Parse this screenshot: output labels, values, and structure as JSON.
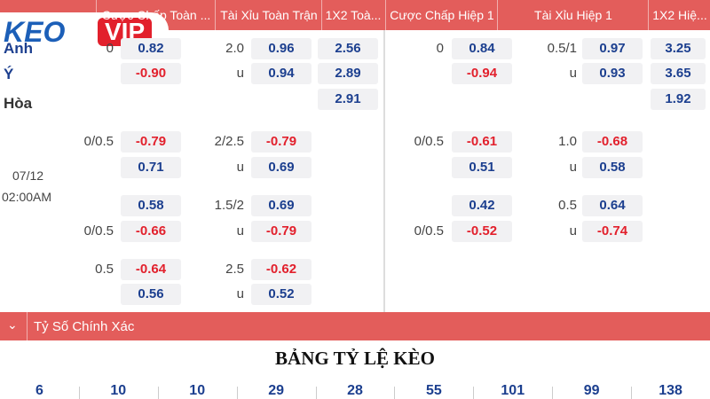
{
  "logo": {
    "keo": "KEO",
    "vip": "VIP"
  },
  "header": [
    "Cược Chấp Toàn ...",
    "Tài Xỉu Toàn Trận",
    "1X2 Toà...",
    "Cược Chấp Hiệp 1",
    "Tài Xỉu Hiệp 1",
    "1X2 Hiệ..."
  ],
  "teams": [
    "Anh",
    "Ý",
    "Hòa"
  ],
  "match_time": {
    "date": "07/12",
    "time": "02:00AM"
  },
  "rows": [
    {
      "ft": {
        "hdp": "0",
        "hdp_odds": "0.82",
        "ou": "2.0",
        "ou_odds": "0.96",
        "x12": "2.56"
      },
      "h1": {
        "hdp": "0",
        "hdp_odds": "0.84",
        "ou": "0.5/1",
        "ou_odds": "0.97",
        "x12": "3.25"
      }
    },
    {
      "ft": {
        "hdp_odds": "-0.90",
        "ou": "u",
        "ou_odds": "0.94",
        "x12": "2.89"
      },
      "h1": {
        "hdp_odds": "-0.94",
        "ou": "u",
        "ou_odds": "0.93",
        "x12": "3.65"
      }
    },
    {
      "ft": {
        "x12": "2.91"
      },
      "h1": {
        "x12": "1.92"
      }
    },
    {
      "ft": {
        "hdp": "0/0.5",
        "hdp_odds": "-0.79",
        "ou": "2/2.5",
        "ou_odds": "-0.79"
      },
      "h1": {
        "hdp": "0/0.5",
        "hdp_odds": "-0.61",
        "ou": "1.0",
        "ou_odds": "-0.68"
      }
    },
    {
      "ft": {
        "hdp_odds": "0.71",
        "ou": "u",
        "ou_odds": "0.69"
      },
      "h1": {
        "hdp_odds": "0.51",
        "ou": "u",
        "ou_odds": "0.58"
      }
    },
    {
      "ft": {
        "hdp_odds": "0.58",
        "ou": "1.5/2",
        "ou_odds": "0.69"
      },
      "h1": {
        "hdp_odds": "0.42",
        "ou": "0.5",
        "ou_odds": "0.64"
      }
    },
    {
      "ft": {
        "hdp": "0/0.5",
        "hdp_odds": "-0.66",
        "ou": "u",
        "ou_odds": "-0.79"
      },
      "h1": {
        "hdp": "0/0.5",
        "hdp_odds": "-0.52",
        "ou": "u",
        "ou_odds": "-0.74"
      }
    },
    {
      "ft": {
        "hdp": "0.5",
        "hdp_odds": "-0.64",
        "ou": "2.5",
        "ou_odds": "-0.62"
      },
      "h1": {}
    },
    {
      "ft": {
        "hdp_odds": "0.56",
        "ou": "u",
        "ou_odds": "0.52"
      },
      "h1": {}
    }
  ],
  "section": "Tỷ Số Chính Xác",
  "title": "BẢNG TỶ LỆ KÈO",
  "scores": [
    6,
    10,
    10,
    29,
    28,
    55,
    101,
    99,
    138
  ]
}
